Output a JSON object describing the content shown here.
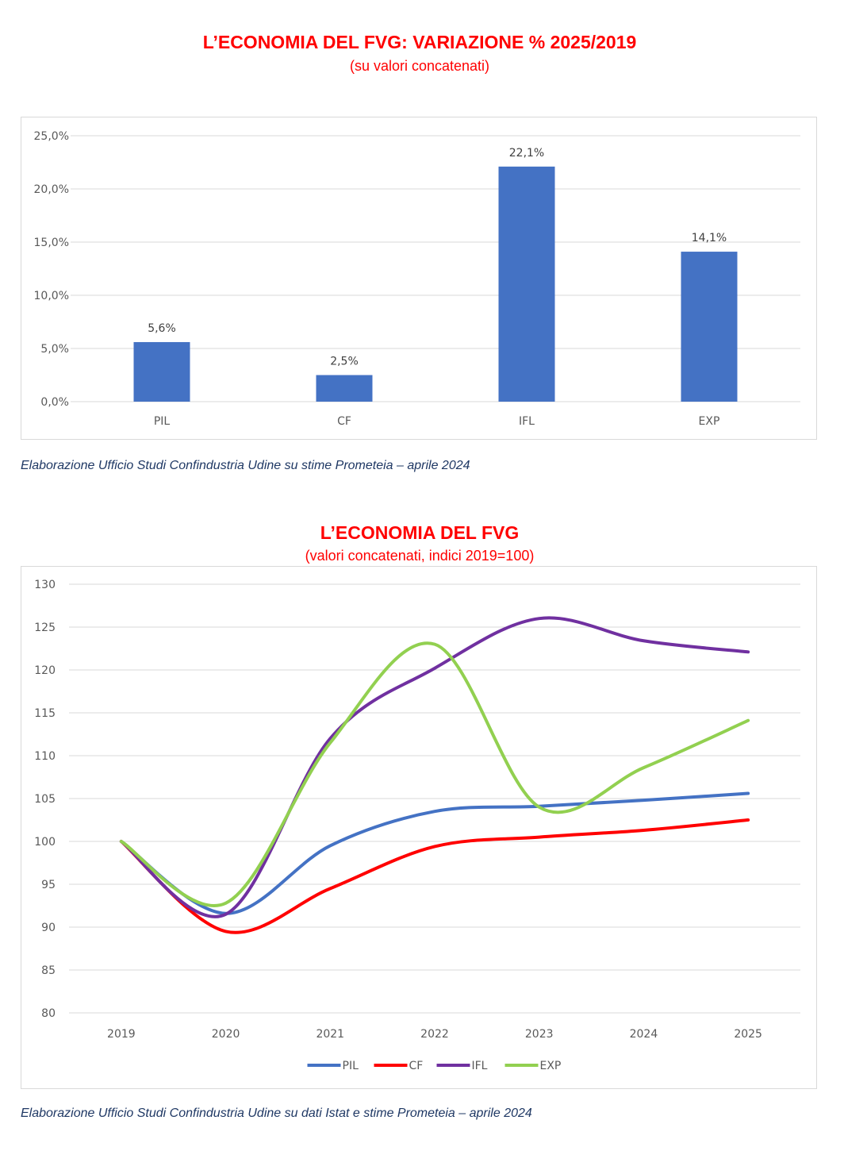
{
  "charts": {
    "bar": {
      "title": "L’ECONOMIA DEL FVG: VARIAZIONE % 2025/2019",
      "subtitle": "(su valori concatenati)",
      "source": "Elaborazione Ufficio Studi Confindustria Udine su stime Prometeia – aprile 2024"
    },
    "line": {
      "title": "L’ECONOMIA DEL FVG",
      "subtitle": "(valori concatenati, indici 2019=100)",
      "source": "Elaborazione Ufficio Studi Confindustria Udine su dati Istat e stime Prometeia – aprile 2024"
    }
  },
  "chart_data": [
    {
      "type": "bar",
      "title": "L’ECONOMIA DEL FVG: VARIAZIONE % 2025/2019",
      "subtitle": "(su valori concatenati)",
      "categories": [
        "PIL",
        "CF",
        "IFL",
        "EXP"
      ],
      "values": [
        5.6,
        2.5,
        22.1,
        14.1
      ],
      "data_labels": [
        "5,6%",
        "2,5%",
        "22,1%",
        "14,1%"
      ],
      "yticks": [
        0,
        5,
        10,
        15,
        20,
        25
      ],
      "ytick_labels": [
        "0,0%",
        "5,0%",
        "10,0%",
        "15,0%",
        "20,0%",
        "25,0%"
      ],
      "ylim": [
        0,
        25
      ],
      "bar_color": "#4472c4",
      "grid": true
    },
    {
      "type": "line",
      "title": "L’ECONOMIA DEL FVG",
      "subtitle": "(valori concatenati, indici 2019=100)",
      "x": [
        "2019",
        "2020",
        "2021",
        "2022",
        "2023",
        "2024",
        "2025"
      ],
      "yticks": [
        80,
        85,
        90,
        95,
        100,
        105,
        110,
        115,
        120,
        125,
        130
      ],
      "ylim": [
        80,
        130
      ],
      "grid": true,
      "legend_position": "bottom",
      "series": [
        {
          "name": "PIL",
          "color": "#4472c4",
          "values": [
            100,
            91.6,
            99.5,
            103.5,
            104.1,
            104.8,
            105.6
          ]
        },
        {
          "name": "CF",
          "color": "#ff0000",
          "values": [
            100,
            89.5,
            94.5,
            99.4,
            100.5,
            101.3,
            102.5
          ]
        },
        {
          "name": "IFL",
          "color": "#7030a0",
          "values": [
            100,
            91.5,
            112.0,
            120.2,
            126.0,
            123.4,
            122.1
          ]
        },
        {
          "name": "EXP",
          "color": "#92d050",
          "values": [
            100,
            92.8,
            111.5,
            123.0,
            104.0,
            108.6,
            114.1
          ]
        }
      ]
    }
  ]
}
